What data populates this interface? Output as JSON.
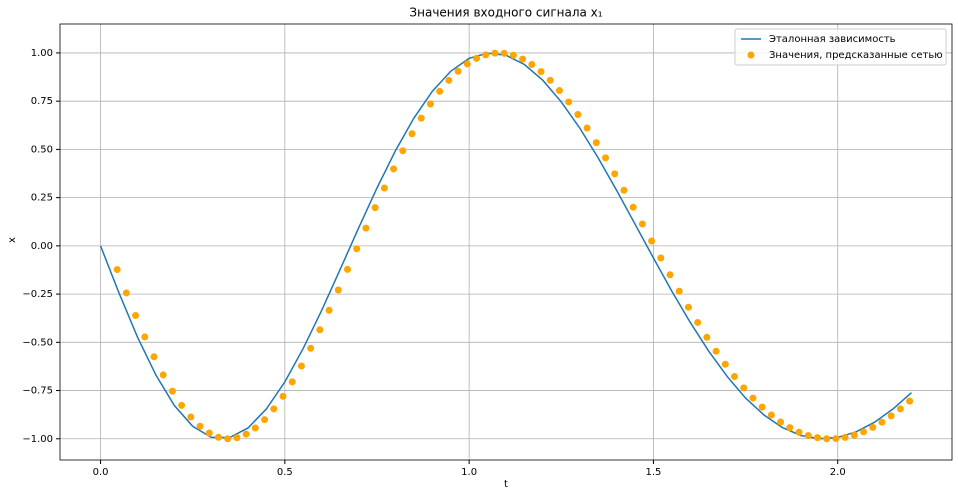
{
  "chart_data": {
    "type": "line_scatter",
    "title": "Значения входного сигнала x₁",
    "x_label": "t",
    "y_label": "x",
    "xlim": [
      -0.11,
      2.31
    ],
    "ylim": [
      -1.11,
      1.15
    ],
    "grid": true,
    "legend": "upper right",
    "xticks": [
      {
        "value": 0,
        "label": "0.0"
      },
      0.5,
      {
        "value": 1,
        "label": "1.0"
      },
      1.5,
      {
        "value": 2,
        "label": "2.0"
      }
    ],
    "yticks": [
      {
        "value": -1,
        "label": "−1.00"
      },
      {
        "value": -0.75,
        "label": "−0.75"
      },
      {
        "value": -0.5,
        "label": "−0.50"
      },
      {
        "value": -0.25,
        "label": "−0.25"
      },
      {
        "value": 0,
        "label": "0.00"
      },
      0.25,
      {
        "value": 0.5,
        "label": "0.50"
      },
      0.75,
      {
        "value": 1,
        "label": "1.00"
      }
    ],
    "series": [
      {
        "name": "Эталонная зависимость",
        "kind": "line",
        "color": "#1f77b4",
        "x": [
          0,
          0.05,
          0.1,
          0.15,
          0.2,
          0.25,
          0.3,
          0.35,
          0.4,
          0.45,
          0.5,
          0.55,
          0.6,
          0.65,
          0.7,
          0.75,
          0.8,
          0.85,
          0.9,
          0.95,
          1.0,
          1.05,
          1.1,
          1.15,
          1.2,
          1.25,
          1.3,
          1.35,
          1.4,
          1.45,
          1.5,
          1.55,
          1.6,
          1.65,
          1.7,
          1.75,
          1.8,
          1.85,
          1.9,
          1.95,
          2.0,
          2.05,
          2.1,
          2.15,
          2.2
        ],
        "values": [
          0,
          -0.244,
          -0.472,
          -0.669,
          -0.827,
          -0.935,
          -0.992,
          -0.994,
          -0.944,
          -0.845,
          -0.705,
          -0.531,
          -0.334,
          -0.122,
          0.092,
          0.3,
          0.493,
          0.662,
          0.801,
          0.905,
          0.972,
          0.999,
          0.988,
          0.94,
          0.858,
          0.746,
          0.611,
          0.456,
          0.288,
          0.113,
          -0.063,
          -0.235,
          -0.397,
          -0.546,
          -0.677,
          -0.789,
          -0.877,
          -0.942,
          -0.983,
          -1.0,
          -0.993,
          -0.964,
          -0.914,
          -0.845,
          -0.761
        ]
      },
      {
        "name": "Значения, предсказанные сетью",
        "kind": "scatter",
        "color": "#ffa500",
        "x": [
          0.045,
          0.07,
          0.095,
          0.12,
          0.145,
          0.17,
          0.195,
          0.22,
          0.245,
          0.27,
          0.295,
          0.32,
          0.345,
          0.37,
          0.395,
          0.42,
          0.445,
          0.47,
          0.495,
          0.52,
          0.545,
          0.57,
          0.595,
          0.62,
          0.645,
          0.67,
          0.695,
          0.72,
          0.745,
          0.77,
          0.795,
          0.82,
          0.845,
          0.87,
          0.895,
          0.92,
          0.945,
          0.97,
          0.995,
          1.02,
          1.045,
          1.07,
          1.095,
          1.12,
          1.145,
          1.17,
          1.195,
          1.22,
          1.245,
          1.27,
          1.295,
          1.32,
          1.345,
          1.37,
          1.395,
          1.42,
          1.445,
          1.47,
          1.495,
          1.52,
          1.545,
          1.57,
          1.595,
          1.62,
          1.645,
          1.67,
          1.695,
          1.72,
          1.745,
          1.77,
          1.795,
          1.82,
          1.845,
          1.87,
          1.895,
          1.92,
          1.945,
          1.97,
          1.995,
          2.02,
          2.045,
          2.07,
          2.095,
          2.12,
          2.145,
          2.17,
          2.195
        ],
        "values": [
          -0.123,
          -0.244,
          -0.361,
          -0.472,
          -0.575,
          -0.669,
          -0.753,
          -0.827,
          -0.887,
          -0.935,
          -0.97,
          -0.992,
          -1.0,
          -0.994,
          -0.976,
          -0.944,
          -0.901,
          -0.845,
          -0.78,
          -0.705,
          -0.623,
          -0.531,
          -0.435,
          -0.334,
          -0.229,
          -0.122,
          -0.015,
          0.092,
          0.198,
          0.3,
          0.399,
          0.493,
          0.581,
          0.662,
          0.735,
          0.801,
          0.858,
          0.905,
          0.943,
          0.972,
          0.99,
          0.999,
          0.998,
          0.988,
          0.968,
          0.94,
          0.903,
          0.858,
          0.805,
          0.746,
          0.681,
          0.611,
          0.535,
          0.456,
          0.373,
          0.288,
          0.2,
          0.113,
          0.025,
          -0.063,
          -0.15,
          -0.235,
          -0.318,
          -0.397,
          -0.474,
          -0.546,
          -0.614,
          -0.677,
          -0.736,
          -0.789,
          -0.836,
          -0.877,
          -0.913,
          -0.942,
          -0.966,
          -0.983,
          -0.994,
          -1.0,
          -0.999,
          -0.993,
          -0.981,
          -0.964,
          -0.941,
          -0.914,
          -0.881,
          -0.845,
          -0.805
        ]
      }
    ]
  }
}
